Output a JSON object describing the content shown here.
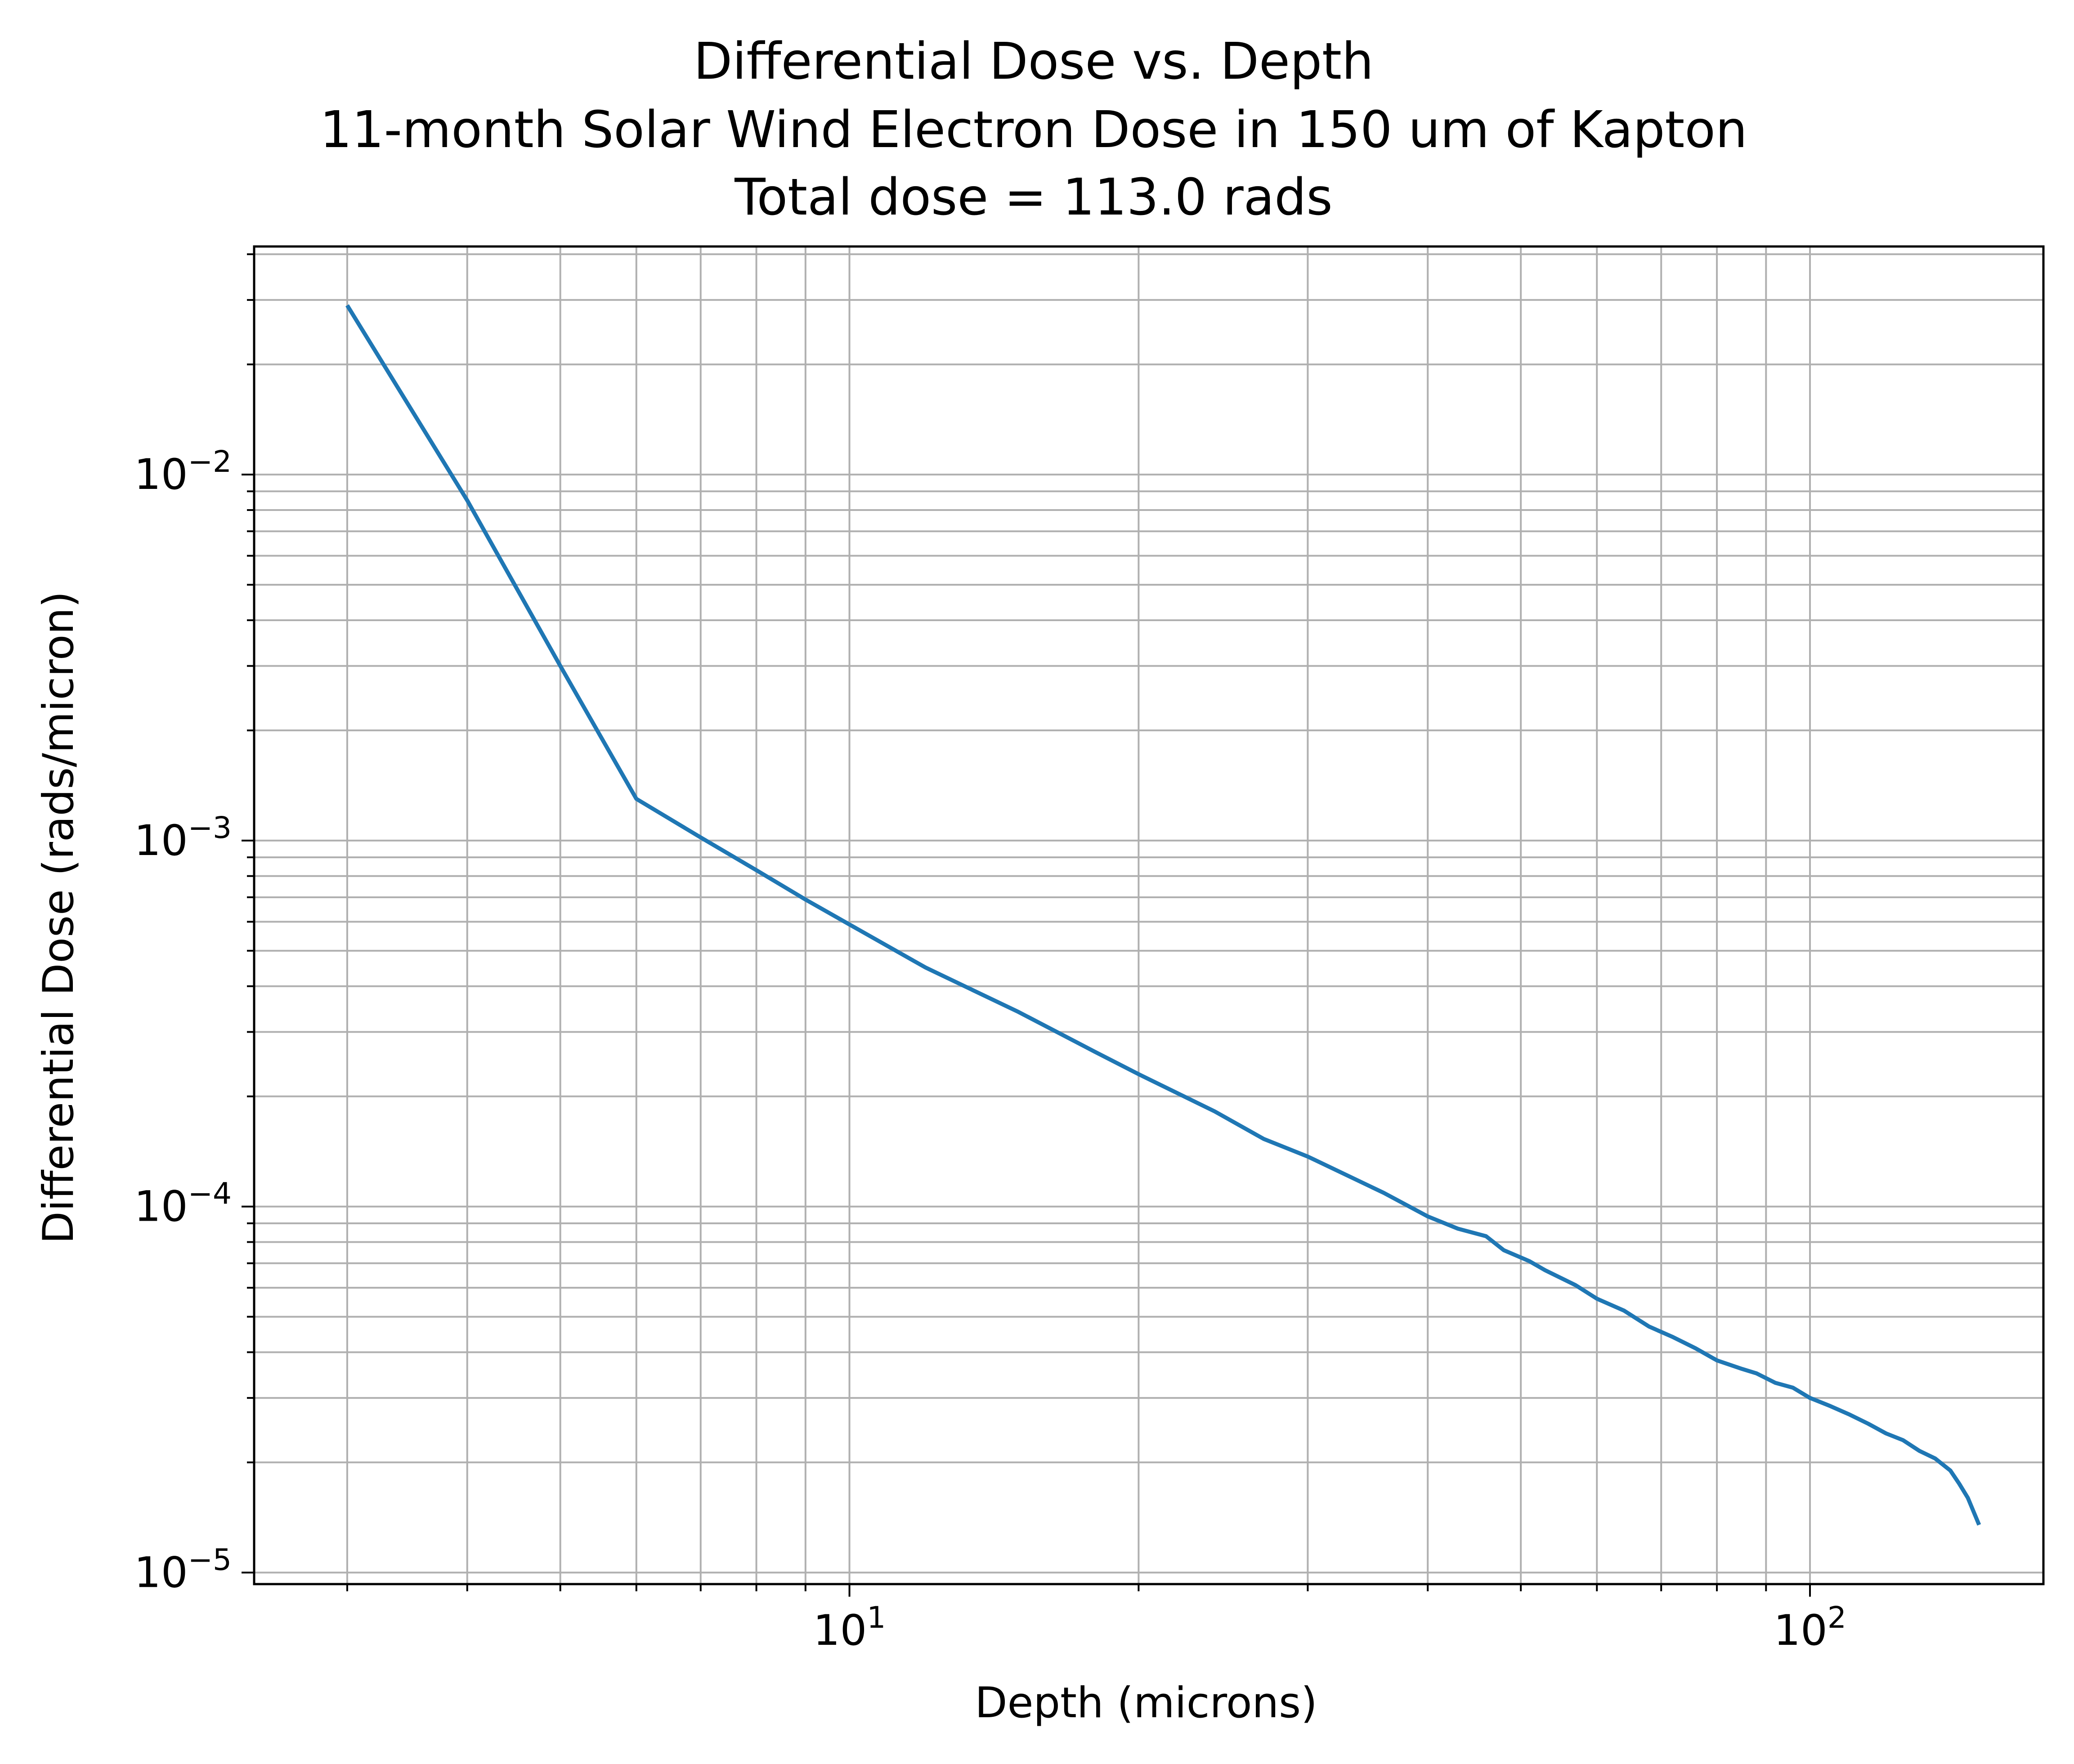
{
  "chart_data": {
    "type": "line",
    "title": [
      "Differential Dose vs. Depth",
      "11-month Solar Wind Electron Dose in 150 um of Kapton",
      "Total dose = 113.0 rads"
    ],
    "xlabel": "Depth (microns)",
    "ylabel": "Differential Dose (rads/micron)",
    "xscale": "log",
    "yscale": "log",
    "xlim": [
      2.4,
      175
    ],
    "ylim": [
      9.3e-06,
      0.042
    ],
    "grid": true,
    "grid_minor": true,
    "x_ticks": [
      {
        "base": "10",
        "exp": "1",
        "value": 10
      },
      {
        "base": "10",
        "exp": "2",
        "value": 100
      }
    ],
    "y_ticks": [
      {
        "base": "10",
        "exp": "−5",
        "value": 1e-05
      },
      {
        "base": "10",
        "exp": "−4",
        "value": 0.0001
      },
      {
        "base": "10",
        "exp": "−3",
        "value": 0.001
      },
      {
        "base": "10",
        "exp": "−2",
        "value": 0.01
      }
    ],
    "series": [
      {
        "color": "#1f77b4",
        "x": [
          3,
          4,
          5,
          6,
          7,
          8,
          9,
          10,
          12,
          15,
          18,
          20,
          24,
          27,
          30,
          36,
          40,
          43,
          46,
          48,
          51,
          53,
          57,
          60,
          64,
          68,
          72,
          76,
          80,
          85,
          88,
          92,
          96,
          100,
          105,
          110,
          115,
          120,
          125,
          130,
          135,
          140,
          143,
          146,
          150
        ],
        "y": [
          0.029,
          0.0085,
          0.003,
          0.0013,
          0.00102,
          0.00083,
          0.00069,
          0.00059,
          0.00045,
          0.00034,
          0.000265,
          0.00023,
          0.000182,
          0.000153,
          0.000137,
          0.000109,
          9.4e-05,
          8.7e-05,
          8.3e-05,
          7.6e-05,
          7.1e-05,
          6.7e-05,
          6.1e-05,
          5.6e-05,
          5.2e-05,
          4.7e-05,
          4.4e-05,
          4.1e-05,
          3.8e-05,
          3.6e-05,
          3.5e-05,
          3.3e-05,
          3.2e-05,
          3e-05,
          2.85e-05,
          2.7e-05,
          2.55e-05,
          2.4e-05,
          2.3e-05,
          2.15e-05,
          2.05e-05,
          1.9e-05,
          1.75e-05,
          1.6e-05,
          1.35e-05
        ]
      }
    ]
  }
}
